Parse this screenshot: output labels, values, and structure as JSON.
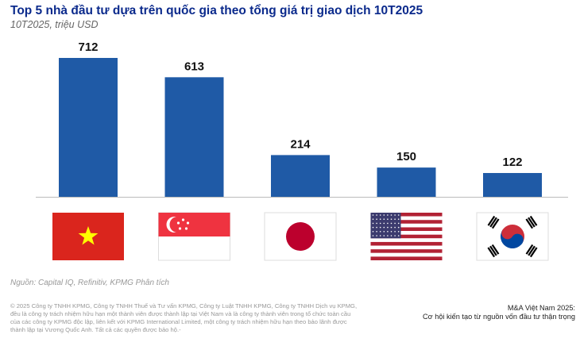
{
  "title": "Top 5 nhà đầu tư dựa trên quốc gia theo tổng giá trị giao dịch 10T2025",
  "subtitle": "10T2025, triệu USD",
  "chart_data": {
    "type": "bar",
    "categories": [
      "vietnam-flag",
      "singapore-flag",
      "japan-flag",
      "usa-flag",
      "south-korea-flag"
    ],
    "values": [
      712,
      613,
      214,
      150,
      122
    ],
    "title": "Top 5 nhà đầu tư dựa trên quốc gia theo tổng giá trị giao dịch 10T2025",
    "ylabel": "",
    "xlabel": "",
    "ylim": [
      0,
      712
    ],
    "grid": false,
    "bar_color": "#1f5aa6"
  },
  "source": "Nguồn: Capital IQ, Refinitiv, KPMG Phân tích",
  "copyright": "© 2025 Công ty TNHH KPMG, Công ty TNHH Thuế và Tư vấn KPMG, Công ty Luật TNHH KPMG, Công ty TNHH Dịch vụ KPMG, đều là công ty trách nhiệm hữu hạn một thành viên được thành lập tại Việt Nam và là công ty thành viên trong tổ chức toàn cầu của các công ty KPMG độc lập, liên kết với KPMG International Limited, một công ty trách nhiệm hữu hạn theo bảo lãnh được thành lập tại Vương Quốc Anh. Tất cả các quyền được bảo hộ.-",
  "report": {
    "line1": "M&A Việt Nam 2025:",
    "line2": "Cơ hội kiến tạo từ nguồn vốn đầu tư thận trọng"
  }
}
